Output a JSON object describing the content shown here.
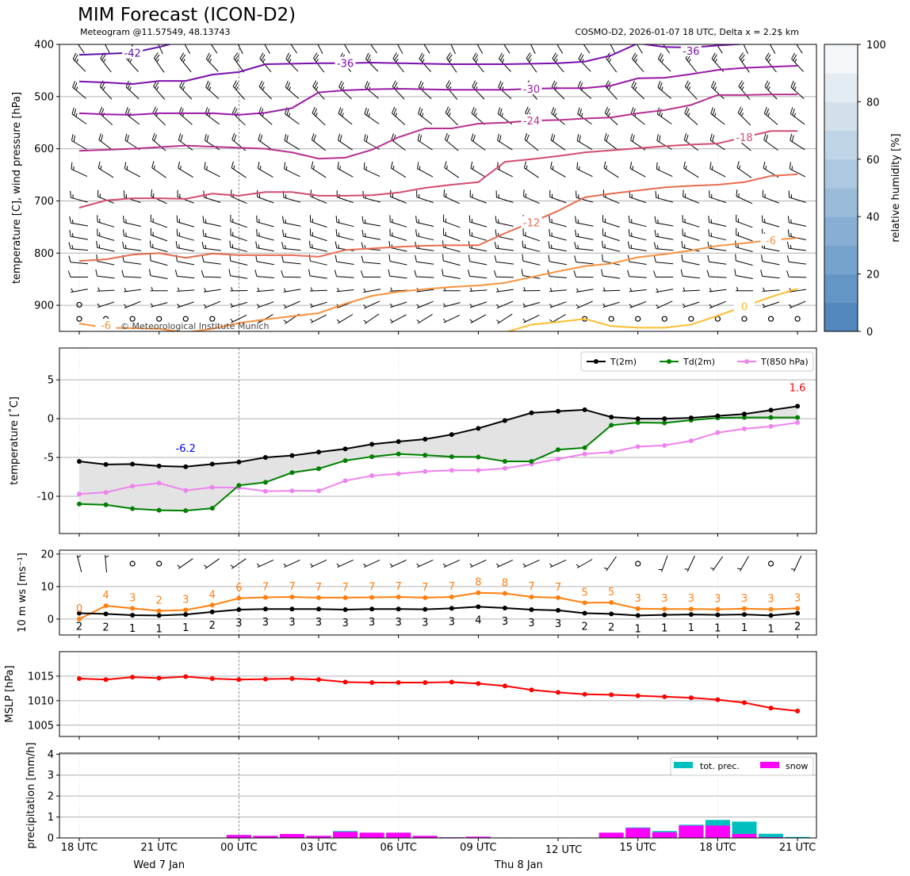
{
  "title": "MIM Forecast (ICON-D2)",
  "subtitle_left": "Meteogram @11.57549, 48.13743",
  "subtitle_right": "COSMO-D2, 2026-01-07 18 UTC, Delta x = 2.2$ km",
  "watermark": "© Meteorological Institute Munich",
  "times": [
    "2026-01-07 18 UTC",
    "2026-01-07 19 UTC",
    "2026-01-07 20 UTC",
    "2026-01-07 21 UTC",
    "2026-01-07 22 UTC",
    "2026-01-07 23 UTC",
    "2026-01-08 00 UTC",
    "2026-01-08 01 UTC",
    "2026-01-08 02 UTC",
    "2026-01-08 03 UTC",
    "2026-01-08 04 UTC",
    "2026-01-08 05 UTC",
    "2026-01-08 06 UTC",
    "2026-01-08 07 UTC",
    "2026-01-08 08 UTC",
    "2026-01-08 09 UTC",
    "2026-01-08 10 UTC",
    "2026-01-08 11 UTC",
    "2026-01-08 12 UTC",
    "2026-01-08 13 UTC",
    "2026-01-08 14 UTC",
    "2026-01-08 15 UTC",
    "2026-01-08 16 UTC",
    "2026-01-08 17 UTC",
    "2026-01-08 18 UTC",
    "2026-01-08 19 UTC",
    "2026-01-08 20 UTC",
    "2026-01-08 21 UTC"
  ],
  "x_ticks": [
    {
      "time": "2026-01-07 18 UTC",
      "label": "18 UTC"
    },
    {
      "time": "2026-01-07 21 UTC",
      "label": "21 UTC",
      "day": "Wed 7 Jan"
    },
    {
      "time": "2026-01-08 00 UTC",
      "label": "00 UTC"
    },
    {
      "time": "2026-01-08 03 UTC",
      "label": "03 UTC"
    },
    {
      "time": "2026-01-08 06 UTC",
      "label": "06 UTC"
    },
    {
      "time": "2026-01-08 09 UTC",
      "label": "09 UTC",
      "day": "Thu 8 Jan"
    },
    {
      "time": "2026-01-08 12 UTC",
      "label": "12 UTC"
    },
    {
      "time": "2026-01-08 15 UTC",
      "label": "15 UTC"
    },
    {
      "time": "2026-01-08 18 UTC",
      "label": "18 UTC"
    },
    {
      "time": "2026-01-08 21 UTC",
      "label": "21 UTC"
    }
  ],
  "day_boundary": "2026-01-08 00 UTC",
  "chart_data": [
    {
      "type": "contour",
      "ylabel": "temperature [C], wind pressure [hPa]",
      "ylim": [
        950,
        400
      ],
      "y_ticks": [
        400,
        500,
        600,
        700,
        800,
        900
      ],
      "grid": true,
      "isotherms": [
        {
          "level": -42,
          "label": "-42",
          "color": "#5c10a8",
          "label_at": 2,
          "pressure": [
            420,
            418,
            416,
            405,
            392,
            null,
            null,
            null,
            null,
            null,
            null,
            null,
            null,
            null,
            null,
            null,
            null,
            null,
            null,
            null,
            null,
            null,
            null,
            null,
            null,
            null,
            null,
            null
          ]
        },
        {
          "level": -36,
          "label": "-36",
          "color": "#7b0fad",
          "label_at": [
            10,
            23
          ],
          "pressure": [
            471,
            473,
            476,
            470,
            470,
            458,
            453,
            438,
            437,
            436,
            436,
            435,
            436,
            437,
            438,
            438,
            438,
            437,
            436,
            433,
            421,
            398,
            405,
            406,
            402,
            399,
            398,
            396
          ]
        },
        {
          "level": -30,
          "label": "-30",
          "color": "#9a18a6",
          "label_at": 17,
          "pressure": [
            532,
            534,
            535,
            532,
            532,
            532,
            535,
            531,
            522,
            492,
            488,
            486,
            485,
            486,
            487,
            487,
            487,
            485,
            484,
            484,
            479,
            465,
            464,
            457,
            449,
            445,
            443,
            441
          ]
        },
        {
          "level": -24,
          "label": "-24",
          "color": "#b7308e",
          "label_at": 17,
          "pressure": [
            604,
            602,
            600,
            597,
            594,
            596,
            598,
            600,
            607,
            619,
            617,
            602,
            578,
            561,
            561,
            552,
            550,
            546,
            545,
            542,
            540,
            532,
            526,
            516,
            497,
            497,
            496,
            496
          ]
        },
        {
          "level": -18,
          "label": "-18",
          "color": "#d24b70",
          "label_at": 25,
          "pressure": [
            713,
            699,
            695,
            695,
            696,
            686,
            690,
            683,
            683,
            690,
            690,
            689,
            684,
            675,
            669,
            664,
            625,
            620,
            614,
            607,
            603,
            599,
            595,
            592,
            590,
            578,
            566,
            566
          ]
        },
        {
          "level": -12,
          "label": "-12",
          "color": "#e86c50",
          "label_at": 17,
          "pressure": [
            815,
            812,
            803,
            800,
            809,
            801,
            804,
            804,
            804,
            807,
            794,
            791,
            788,
            786,
            785,
            785,
            762,
            741,
            719,
            693,
            686,
            680,
            674,
            671,
            669,
            664,
            652,
            649
          ]
        },
        {
          "level": -6,
          "label": "-6",
          "color": "#f7913c",
          "label_at": [
            1,
            26
          ],
          "pressure": [
            935,
            943,
            944,
            945,
            952,
            945,
            934,
            927,
            921,
            915,
            897,
            882,
            874,
            869,
            865,
            862,
            857,
            846,
            835,
            825,
            820,
            808,
            802,
            795,
            786,
            781,
            775,
            771
          ]
        },
        {
          "level": 0,
          "label": "0",
          "color": "#fbbd2c",
          "label_at": 25,
          "pressure": [
            null,
            null,
            null,
            null,
            null,
            null,
            null,
            null,
            null,
            null,
            null,
            null,
            null,
            null,
            null,
            null,
            952,
            937,
            932,
            926,
            940,
            943,
            943,
            937,
            920,
            902,
            884,
            868
          ]
        }
      ],
      "wind_barbs": {
        "levels_hpa": [
          403,
          440,
          493,
          543,
          593,
          646,
          698,
          745,
          771,
          793,
          819,
          846,
          872,
          899,
          926
        ],
        "direction_deg": [
          330,
          320,
          315,
          310,
          305,
          300,
          290,
          285,
          285,
          280,
          280,
          275,
          265,
          250,
          240
        ],
        "speed_kt": [
          20,
          25,
          25,
          25,
          20,
          15,
          15,
          15,
          15,
          15,
          12,
          10,
          7,
          5,
          5
        ],
        "calm": {
          "899": [
            0
          ],
          "926": [
            0,
            1,
            2,
            3,
            4,
            5,
            19,
            20,
            21,
            22,
            23,
            24,
            25,
            26,
            27
          ]
        }
      },
      "colorbar": {
        "label": "relative humidity [%]",
        "ticks": [
          0,
          20,
          40,
          60,
          80,
          100
        ],
        "bounds": [
          0,
          10,
          20,
          30,
          40,
          50,
          60,
          70,
          80,
          90,
          100
        ],
        "colors": [
          "#5288bd",
          "#6496c5",
          "#76a3cc",
          "#88afd3",
          "#9bbcd9",
          "#adc8e0",
          "#c0d5e7",
          "#d3e0ec",
          "#e3ebf3",
          "#f4f8fb"
        ]
      }
    },
    {
      "type": "line",
      "ylabel": "temperature [˚C]",
      "ylim": [
        -14.8,
        9.1
      ],
      "y_ticks": [
        -10,
        -5,
        0,
        5
      ],
      "grid": true,
      "legend": "top-right",
      "fill_between": [
        "T(2m)",
        "Td(2m)"
      ],
      "fill_color": "#e3e3e3",
      "series": [
        {
          "name": "T(2m)",
          "color": "#000000",
          "values": [
            -5.5,
            -5.9,
            -5.85,
            -6.1,
            -6.2,
            -5.85,
            -5.6,
            -5.0,
            -4.75,
            -4.3,
            -3.9,
            -3.3,
            -2.95,
            -2.65,
            -2.05,
            -1.25,
            -0.25,
            0.75,
            0.95,
            1.15,
            0.2,
            0.0,
            0.0,
            0.1,
            0.35,
            0.6,
            1.1,
            1.6
          ]
        },
        {
          "name": "Td(2m)",
          "color": "#008000",
          "values": [
            -11.0,
            -11.1,
            -11.6,
            -11.8,
            -11.85,
            -11.55,
            -8.6,
            -8.2,
            -6.95,
            -6.45,
            -5.4,
            -4.9,
            -4.55,
            -4.7,
            -4.9,
            -4.95,
            -5.5,
            -5.5,
            -4.0,
            -3.75,
            -0.85,
            -0.5,
            -0.55,
            -0.2,
            0.1,
            0.15,
            0.15,
            0.15
          ]
        },
        {
          "name": "T(850 hPa)",
          "color": "#ee82ee",
          "values": [
            -9.7,
            -9.5,
            -8.7,
            -8.3,
            -9.25,
            -8.85,
            -8.9,
            -9.35,
            -9.3,
            -9.3,
            -8.0,
            -7.35,
            -7.1,
            -6.8,
            -6.65,
            -6.65,
            -6.4,
            -5.85,
            -5.2,
            -4.55,
            -4.3,
            -3.6,
            -3.45,
            -2.85,
            -1.8,
            -1.3,
            -1.0,
            -0.5
          ]
        }
      ],
      "annotations": [
        {
          "text": "-6.2",
          "time_index": 4,
          "value": -6.2,
          "color": "#0000ff"
        },
        {
          "text": "1.6",
          "time_index": 27,
          "value": 1.6,
          "color": "#ff0000"
        }
      ]
    },
    {
      "type": "line",
      "ylabel": "10 m ws [ms⁻¹]",
      "ylim": [
        -4.9,
        21.2
      ],
      "y_ticks": [
        0,
        10,
        20
      ],
      "grid": true,
      "series": [
        {
          "color": "#ff7f0e",
          "values": [
            0.0,
            4.1,
            3.3,
            2.5,
            2.8,
            4.3,
            6.4,
            6.7,
            6.8,
            6.6,
            6.6,
            6.7,
            6.8,
            6.6,
            6.8,
            8.1,
            7.9,
            6.8,
            6.6,
            5.0,
            5.1,
            3.2,
            3.1,
            3.1,
            3.0,
            3.2,
            3.0,
            3.3
          ],
          "labels": [
            "0",
            "4",
            "3",
            "2",
            "3",
            "4",
            "6",
            "7",
            "7",
            "7",
            "7",
            "7",
            "7",
            "7",
            "7",
            "8",
            "8",
            "7",
            "7",
            "5",
            "5",
            "3",
            "3",
            "3",
            "3",
            "3",
            "3",
            "3"
          ]
        },
        {
          "color": "#000000",
          "values": [
            1.8,
            1.6,
            1.2,
            1.1,
            1.4,
            2.2,
            2.9,
            3.1,
            3.1,
            3.1,
            2.9,
            3.1,
            3.1,
            3.0,
            3.3,
            3.8,
            3.4,
            2.9,
            2.7,
            1.8,
            1.6,
            1.1,
            1.3,
            1.4,
            1.3,
            1.4,
            1.1,
            1.8
          ],
          "labels": [
            "2",
            "2",
            "1",
            "1",
            "1",
            "2",
            "3",
            "3",
            "3",
            "3",
            "3",
            "3",
            "3",
            "3",
            "3",
            "4",
            "3",
            "3",
            "3",
            "2",
            "2",
            "1",
            "1",
            "1",
            "1",
            "1",
            "1",
            "2"
          ]
        }
      ],
      "wind_barbs": {
        "direction_deg": [
          345,
          355,
          null,
          null,
          235,
          235,
          235,
          245,
          245,
          245,
          245,
          245,
          245,
          245,
          245,
          245,
          245,
          245,
          245,
          240,
          215,
          null,
          200,
          205,
          215,
          210,
          null,
          205
        ],
        "speed_kt": [
          5,
          5,
          0,
          0,
          5,
          5,
          5,
          5,
          5,
          5,
          5,
          5,
          5,
          5,
          5,
          5,
          5,
          5,
          5,
          5,
          5,
          0,
          5,
          5,
          5,
          5,
          0,
          5
        ]
      }
    },
    {
      "type": "line",
      "ylabel": "MSLP [hPa]",
      "ylim": [
        1002.7,
        1020.0
      ],
      "y_ticks": [
        1005,
        1010,
        1015
      ],
      "grid": true,
      "series": [
        {
          "color": "#ff0000",
          "values": [
            1014.5,
            1014.3,
            1014.8,
            1014.6,
            1014.9,
            1014.5,
            1014.3,
            1014.4,
            1014.5,
            1014.3,
            1013.8,
            1013.7,
            1013.7,
            1013.7,
            1013.8,
            1013.5,
            1013.0,
            1012.2,
            1011.7,
            1011.3,
            1011.2,
            1011.0,
            1010.8,
            1010.6,
            1010.2,
            1009.6,
            1008.5,
            1007.9
          ]
        }
      ]
    },
    {
      "type": "bar",
      "ylabel": "precipitation [mm/h]",
      "ylim": [
        0,
        4.05
      ],
      "y_ticks": [
        0,
        1,
        2,
        3,
        4
      ],
      "grid": true,
      "legend": "top-right",
      "series": [
        {
          "name": "tot. prec.",
          "color": "#00bfbf",
          "values": [
            0,
            0,
            0,
            0,
            0,
            0,
            0.14,
            0.1,
            0.19,
            0.1,
            0.33,
            0.25,
            0.25,
            0.1,
            0.03,
            0.06,
            0.02,
            0,
            0.02,
            0.02,
            0.25,
            0.5,
            0.33,
            0.63,
            0.86,
            0.78,
            0.2,
            0.05
          ]
        },
        {
          "name": "snow",
          "color": "#ff00ff",
          "values": [
            0,
            0,
            0,
            0,
            0,
            0,
            0.14,
            0.1,
            0.19,
            0.1,
            0.29,
            0.25,
            0.25,
            0.1,
            0.03,
            0.06,
            0.02,
            0,
            0.02,
            0.02,
            0.25,
            0.47,
            0.27,
            0.59,
            0.59,
            0.19,
            0.04,
            0
          ]
        }
      ]
    }
  ]
}
